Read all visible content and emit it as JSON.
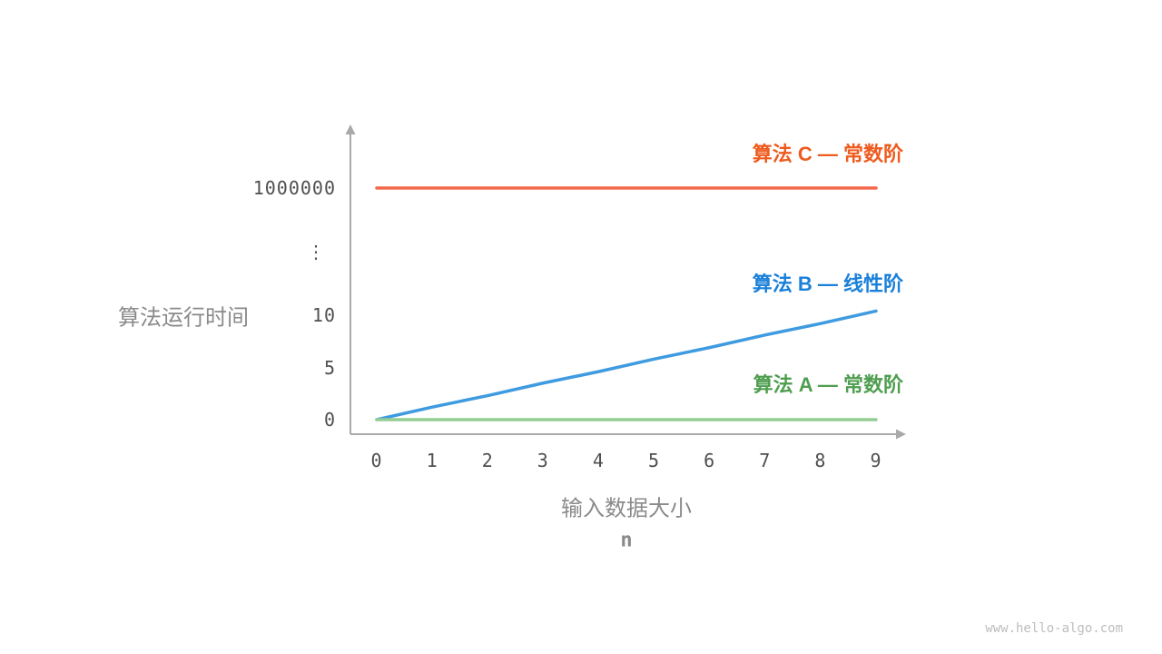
{
  "watermark": "www.hello-algo.com",
  "style": {
    "background": "#ffffff",
    "axis_color": "#a9a9a9",
    "tick_label_color": "#4f4f4f",
    "axis_title_color": "#8a8a8a",
    "watermark_color": "#bdbdbd"
  },
  "chart_data": {
    "type": "line",
    "title": "",
    "xlabel": "输入数据大小",
    "xlabel_variable": "n",
    "ylabel": "算法运行时间",
    "x": [
      0,
      1,
      2,
      3,
      4,
      5,
      6,
      7,
      8,
      9
    ],
    "x_tick_labels": [
      "0",
      "1",
      "2",
      "3",
      "4",
      "5",
      "6",
      "7",
      "8",
      "9"
    ],
    "y_tick_labels": [
      "0",
      "5",
      "10",
      "⋮",
      "1000000"
    ],
    "y_axis_break": true,
    "grid": false,
    "legend_position": "inline right, above each line",
    "series": [
      {
        "name": "algorithm-C",
        "label": "算法 C — 常数阶",
        "growth": "constant",
        "color": "#f4694c",
        "label_color": "#ee5b1e",
        "values": [
          1000000,
          1000000,
          1000000,
          1000000,
          1000000,
          1000000,
          1000000,
          1000000,
          1000000,
          1000000
        ]
      },
      {
        "name": "algorithm-B",
        "label": "算法 B — 线性阶",
        "growth": "linear",
        "color": "#3f9be0",
        "label_color": "#1a80d9",
        "values": [
          0,
          1.2,
          2.3,
          3.5,
          4.6,
          5.8,
          6.9,
          8.1,
          9.2,
          10.4
        ]
      },
      {
        "name": "algorithm-A",
        "label": "算法 A — 常数阶",
        "growth": "constant",
        "color": "#93cd93",
        "label_color": "#4f9e50",
        "values": [
          0,
          0,
          0,
          0,
          0,
          0,
          0,
          0,
          0,
          0
        ]
      }
    ]
  }
}
